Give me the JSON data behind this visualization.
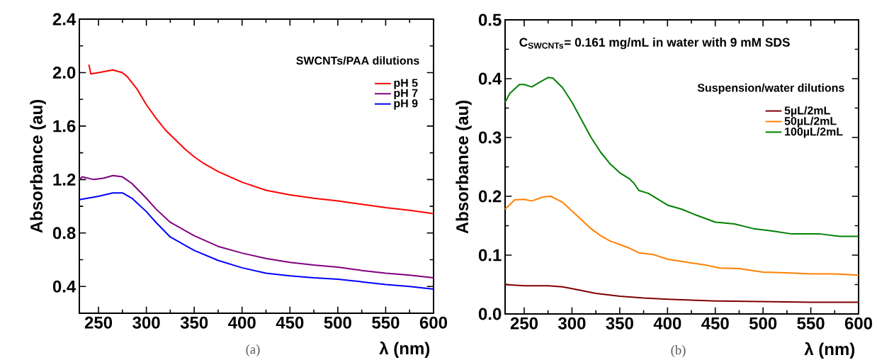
{
  "chart_data": [
    {
      "type": "line",
      "xlabel": "λ (nm)",
      "ylabel": "Absorbance (au)",
      "legend_title": "SWCNTs/PAA dilutions",
      "legend": "top right",
      "xlim": [
        230,
        600
      ],
      "ylim": [
        0.2,
        2.4
      ],
      "xticks": [
        250,
        300,
        350,
        400,
        450,
        500,
        550,
        600
      ],
      "yticks": [
        {
          "value": 0.4,
          "label": "0.4"
        },
        {
          "value": 0.8,
          "label": "0.8"
        },
        {
          "value": 1.2,
          "label": "1.2"
        },
        {
          "value": 1.6,
          "label": "1.6"
        },
        {
          "value": 2.0,
          "label": "2.0"
        },
        {
          "value": 2.4,
          "label": "2.4"
        }
      ],
      "annotations": [
        "(a)"
      ],
      "series": [
        {
          "name": "pH 5",
          "color": "#ff0000",
          "x": [
            240,
            242,
            250,
            265,
            275,
            280,
            290,
            300,
            310,
            320,
            330,
            340,
            350,
            360,
            375,
            400,
            425,
            450,
            475,
            500,
            525,
            550,
            575,
            600
          ],
          "values": [
            2.06,
            1.99,
            2.0,
            2.02,
            2.0,
            1.97,
            1.88,
            1.76,
            1.66,
            1.57,
            1.5,
            1.43,
            1.37,
            1.32,
            1.26,
            1.18,
            1.12,
            1.085,
            1.06,
            1.04,
            1.015,
            0.99,
            0.97,
            0.945
          ]
        },
        {
          "name": "pH 7",
          "color": "#800080",
          "x": [
            230,
            233,
            245,
            255,
            265,
            275,
            285,
            300,
            310,
            325,
            350,
            375,
            400,
            425,
            450,
            475,
            500,
            525,
            550,
            575,
            600
          ],
          "values": [
            1.2,
            1.22,
            1.2,
            1.21,
            1.23,
            1.22,
            1.17,
            1.06,
            0.98,
            0.88,
            0.78,
            0.7,
            0.65,
            0.61,
            0.58,
            0.56,
            0.545,
            0.52,
            0.5,
            0.485,
            0.465
          ]
        },
        {
          "name": "pH 9",
          "color": "#0000ff",
          "x": [
            230,
            250,
            265,
            275,
            285,
            300,
            310,
            325,
            350,
            375,
            400,
            425,
            450,
            475,
            500,
            525,
            550,
            575,
            600
          ],
          "values": [
            1.05,
            1.075,
            1.1,
            1.1,
            1.06,
            0.96,
            0.88,
            0.77,
            0.67,
            0.595,
            0.54,
            0.5,
            0.48,
            0.465,
            0.455,
            0.435,
            0.415,
            0.4,
            0.38
          ]
        }
      ]
    },
    {
      "type": "line",
      "xlabel": "λ (nm)",
      "ylabel": "Absorbance (au)",
      "legend_title": "Suspension/water dilutions",
      "legend": "top right",
      "xlim": [
        230,
        600
      ],
      "ylim": [
        0,
        0.5
      ],
      "xticks": [
        250,
        300,
        350,
        400,
        450,
        500,
        550,
        600
      ],
      "yticks": [
        {
          "value": 0,
          "label": "0.0"
        },
        {
          "value": 0.1,
          "label": "0.1"
        },
        {
          "value": 0.2,
          "label": "0.2"
        },
        {
          "value": 0.3,
          "label": "0.3"
        },
        {
          "value": 0.4,
          "label": "0.4"
        },
        {
          "value": 0.5,
          "label": "0.5"
        }
      ],
      "annotations": [
        "C$_{SWCNTs}$= 0.161 mg/mL in water with 9 mM SDS",
        "(b)"
      ],
      "series": [
        {
          "name": "5µL/2mL",
          "color": "#800000",
          "x": [
            230,
            250,
            275,
            290,
            300,
            325,
            350,
            375,
            400,
            450,
            500,
            550,
            600
          ],
          "values": [
            0.05,
            0.048,
            0.048,
            0.046,
            0.043,
            0.035,
            0.03,
            0.027,
            0.025,
            0.022,
            0.021,
            0.02,
            0.02
          ]
        },
        {
          "name": "50µL/2mL",
          "color": "#ff8000",
          "x": [
            230,
            240,
            250,
            258,
            270,
            278,
            290,
            300,
            310,
            320,
            330,
            340,
            350,
            360,
            370,
            385,
            400,
            420,
            440,
            455,
            475,
            500,
            525,
            550,
            575,
            600
          ],
          "values": [
            0.178,
            0.194,
            0.195,
            0.192,
            0.199,
            0.2,
            0.19,
            0.175,
            0.16,
            0.145,
            0.133,
            0.124,
            0.118,
            0.112,
            0.104,
            0.101,
            0.093,
            0.088,
            0.083,
            0.078,
            0.077,
            0.071,
            0.07,
            0.068,
            0.068,
            0.066
          ]
        },
        {
          "name": "100µL/2mL",
          "color": "#008000",
          "x": [
            230,
            235,
            245,
            250,
            258,
            265,
            275,
            280,
            290,
            300,
            310,
            320,
            330,
            340,
            350,
            360,
            365,
            370,
            380,
            390,
            400,
            415,
            430,
            450,
            470,
            490,
            510,
            530,
            560,
            580,
            600
          ],
          "values": [
            0.36,
            0.375,
            0.39,
            0.39,
            0.386,
            0.393,
            0.402,
            0.401,
            0.385,
            0.36,
            0.33,
            0.3,
            0.275,
            0.255,
            0.24,
            0.23,
            0.222,
            0.21,
            0.205,
            0.195,
            0.185,
            0.178,
            0.168,
            0.156,
            0.153,
            0.145,
            0.141,
            0.136,
            0.136,
            0.132,
            0.132
          ]
        }
      ]
    }
  ]
}
